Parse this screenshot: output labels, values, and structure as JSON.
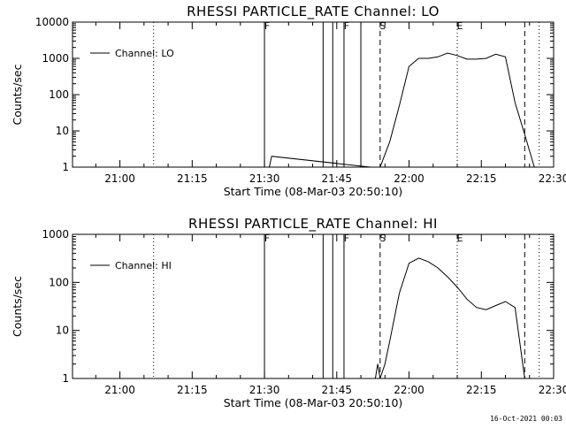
{
  "timestamp": "16-Oct-2021 00:03",
  "chart_data": [
    {
      "type": "line",
      "title": "RHESSI PARTICLE_RATE Channel: LO",
      "xlabel": "Start Time (08-Mar-03 20:50:10)",
      "ylabel": "Counts/sec",
      "yscale": "log",
      "ylim": [
        1,
        10000
      ],
      "yticks": [
        "1",
        "10",
        "100",
        "1000",
        "10000"
      ],
      "xlim": [
        "20:50:10",
        "22:30"
      ],
      "xticks": [
        "21:00",
        "21:15",
        "21:30",
        "21:45",
        "22:00",
        "22:15",
        "22:30"
      ],
      "legend": "top-left",
      "series": [
        {
          "name": "Channel: LO",
          "x": [
            "21:30",
            "21:31",
            "21:31:30",
            "21:52",
            "21:54",
            "21:56",
            "21:58",
            "22:00",
            "22:02",
            "22:04",
            "22:06",
            "22:08",
            "22:10",
            "22:12",
            "22:14",
            "22:16",
            "22:18",
            "22:20",
            "22:22",
            "22:24",
            "22:26",
            "22:27"
          ],
          "y": [
            1,
            1,
            2,
            1,
            1,
            5,
            50,
            600,
            1000,
            1000,
            1100,
            1400,
            1200,
            950,
            950,
            1000,
            1300,
            1100,
            60,
            8,
            1,
            1
          ]
        }
      ],
      "markers": [
        {
          "label": "F",
          "x": "21:30",
          "style": "solid"
        },
        {
          "label": "",
          "x": "21:42:10",
          "style": "solid"
        },
        {
          "label": "",
          "x": "21:44:10",
          "style": "solid"
        },
        {
          "label": "F",
          "x": "21:46:30",
          "style": "solid"
        },
        {
          "label": "",
          "x": "21:50",
          "style": "solid"
        },
        {
          "label": "S",
          "x": "21:54",
          "style": "dashed"
        },
        {
          "label": "E",
          "x": "22:10",
          "style": "dotted"
        },
        {
          "label": "",
          "x": "22:24",
          "style": "dashed"
        },
        {
          "label": "",
          "x": "22:27",
          "style": "dotted"
        },
        {
          "label": "",
          "x": "21:07",
          "style": "dotted"
        }
      ]
    },
    {
      "type": "line",
      "title": "RHESSI PARTICLE_RATE Channel: HI",
      "xlabel": "Start Time (08-Mar-03 20:50:10)",
      "ylabel": "Counts/sec",
      "yscale": "log",
      "ylim": [
        1,
        1000
      ],
      "yticks": [
        "1",
        "10",
        "100",
        "1000"
      ],
      "xlim": [
        "20:50:10",
        "22:30"
      ],
      "xticks": [
        "21:00",
        "21:15",
        "21:30",
        "21:45",
        "22:00",
        "22:15",
        "22:30"
      ],
      "legend": "top-left",
      "series": [
        {
          "name": "Channel: HI",
          "x": [
            "21:53",
            "21:53:30",
            "21:54",
            "21:55",
            "21:56",
            "21:58",
            "22:00",
            "22:02",
            "22:04",
            "22:06",
            "22:08",
            "22:10",
            "22:12",
            "22:14",
            "22:16",
            "22:18",
            "22:20",
            "22:22",
            "22:24"
          ],
          "y": [
            1,
            2,
            1,
            2,
            6,
            60,
            250,
            320,
            270,
            200,
            130,
            80,
            45,
            30,
            27,
            33,
            40,
            30,
            1
          ]
        }
      ],
      "markers": [
        {
          "label": "F",
          "x": "21:30",
          "style": "solid"
        },
        {
          "label": "",
          "x": "21:42:10",
          "style": "solid"
        },
        {
          "label": "",
          "x": "21:44:10",
          "style": "solid"
        },
        {
          "label": "F",
          "x": "21:46:30",
          "style": "solid"
        },
        {
          "label": "S",
          "x": "21:54",
          "style": "dashed"
        },
        {
          "label": "E",
          "x": "22:10",
          "style": "dotted"
        },
        {
          "label": "",
          "x": "22:24",
          "style": "dashed"
        },
        {
          "label": "",
          "x": "22:27",
          "style": "dotted"
        },
        {
          "label": "",
          "x": "21:07",
          "style": "dotted"
        }
      ]
    }
  ]
}
